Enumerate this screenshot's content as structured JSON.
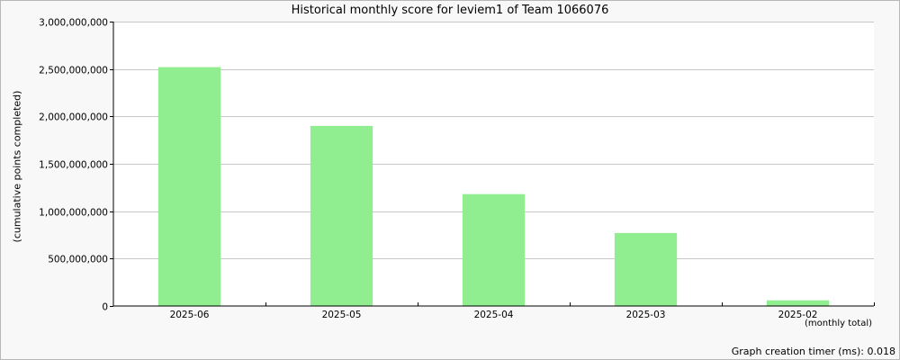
{
  "chart_data": {
    "type": "bar",
    "title": "Historical monthly score for leviem1 of Team 1066076",
    "ylabel": "(cumulative points completed)",
    "xlabel_note": "(monthly total)",
    "categories": [
      "2025-06",
      "2025-05",
      "2025-04",
      "2025-03",
      "2025-02"
    ],
    "values": [
      2520000000,
      1900000000,
      1180000000,
      770000000,
      60000000
    ],
    "ylim": [
      0,
      3000000000
    ],
    "yticks": [
      0,
      500000000,
      1000000000,
      1500000000,
      2000000000,
      2500000000,
      3000000000
    ],
    "ytick_labels": [
      "0",
      "500,000,000",
      "1,000,000,000",
      "1,500,000,000",
      "2,000,000,000",
      "2,500,000,000",
      "3,000,000,000"
    ],
    "grid": true,
    "legend": "none",
    "colors": {
      "bar": "#90ee90",
      "grid": "#c8c8c8",
      "plot_background": "#ffffff",
      "page_background": "#f8f8f8"
    }
  },
  "footer": {
    "timer_text": "Graph creation timer (ms): 0.018"
  }
}
